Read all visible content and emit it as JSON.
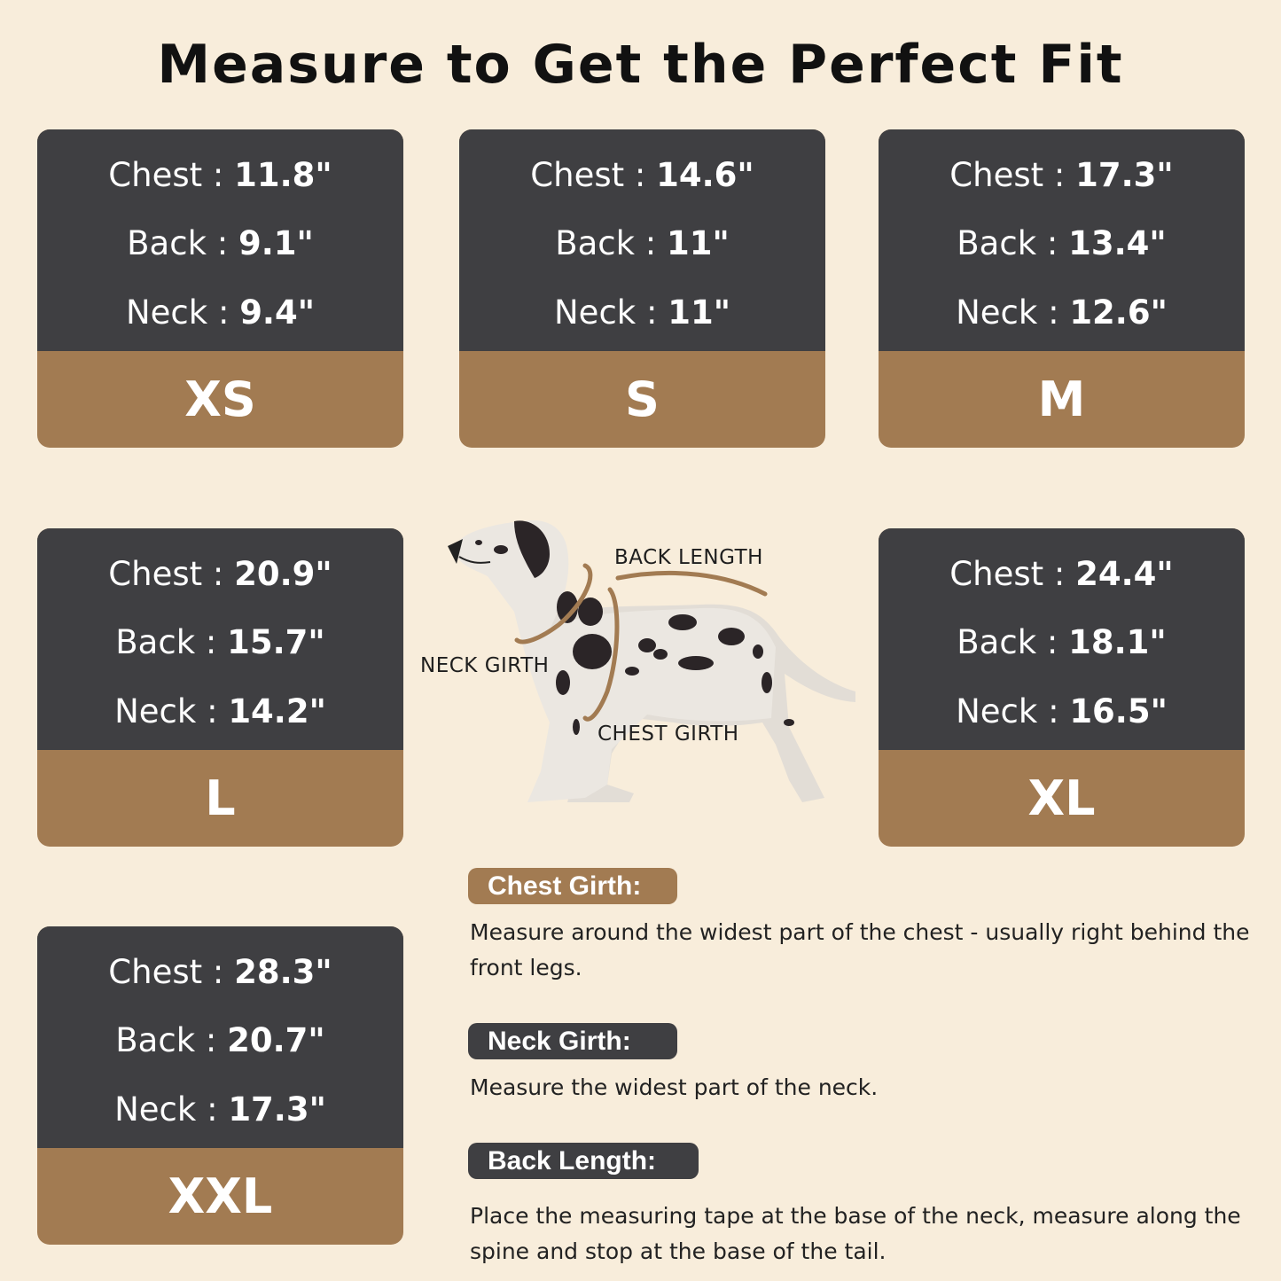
{
  "title": "Measure to Get the Perfect Fit",
  "sizes": [
    {
      "size": "XS",
      "chest": "11.8\"",
      "back": "9.1\"",
      "neck": "9.4\""
    },
    {
      "size": "S",
      "chest": "14.6\"",
      "back": "11\"",
      "neck": "11\""
    },
    {
      "size": "M",
      "chest": "17.3\"",
      "back": "13.4\"",
      "neck": "12.6\""
    },
    {
      "size": "L",
      "chest": "20.9\"",
      "back": "15.7\"",
      "neck": "14.2\""
    },
    {
      "size": "XL",
      "chest": "24.4\"",
      "back": "18.1\"",
      "neck": "16.5\""
    },
    {
      "size": "XXL",
      "chest": "28.3\"",
      "back": "20.7\"",
      "neck": "17.3\""
    }
  ],
  "labels": {
    "chest": "Chest : ",
    "back": "Back : ",
    "neck": "Neck : "
  },
  "diagram": {
    "back_length": "BACK LENGTH",
    "neck_girth": "NECK GIRTH",
    "chest_girth": "CHEST GIRTH"
  },
  "guide": [
    {
      "heading": "Chest Girth:",
      "text": "Measure around the widest part of the chest - usually right behind the front legs."
    },
    {
      "heading": "Neck Girth:",
      "text": "Measure the widest part of the neck."
    },
    {
      "heading": "Back Length:",
      "text": "Place the measuring tape at the base of the neck, measure along the spine and stop at the base of the tail."
    }
  ],
  "colors": {
    "background": "#f8eddb",
    "card_dark": "#3f3f42",
    "accent_brown": "#a27b52"
  }
}
